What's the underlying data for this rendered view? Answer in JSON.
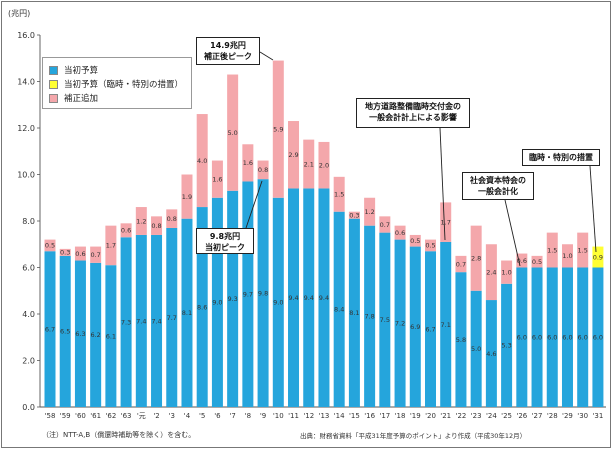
{
  "chart_data": {
    "type": "bar",
    "stacked": true,
    "unit": "(兆円)",
    "categories": [
      "'58",
      "'59",
      "'60",
      "'61",
      "'62",
      "'63",
      "'元",
      "'2",
      "'3",
      "'4",
      "'5",
      "'6",
      "'7",
      "'8",
      "'9",
      "'10",
      "'11",
      "'12",
      "'13",
      "'14",
      "'15",
      "'16",
      "'17",
      "'18",
      "'19",
      "'20",
      "'21",
      "'22",
      "'23",
      "'24",
      "'25",
      "'26",
      "'27",
      "'28",
      "'29",
      "'30",
      "'31"
    ],
    "series": [
      {
        "name": "当初予算",
        "color": "#25a5dc",
        "values": [
          6.7,
          6.5,
          6.3,
          6.2,
          6.1,
          7.3,
          7.4,
          7.4,
          7.7,
          8.1,
          8.6,
          9.0,
          9.3,
          9.7,
          9.8,
          9.0,
          9.4,
          9.4,
          9.4,
          8.4,
          8.1,
          7.8,
          7.5,
          7.2,
          6.9,
          6.7,
          7.1,
          5.8,
          5.0,
          4.6,
          5.3,
          6.0,
          6.0,
          6.0,
          6.0,
          6.0,
          6.0
        ]
      },
      {
        "name": "当初予算（臨時・特別の措置）",
        "color": "#ffff33",
        "values": [
          0,
          0,
          0,
          0,
          0,
          0,
          0,
          0,
          0,
          0,
          0,
          0,
          0,
          0,
          0,
          0,
          0,
          0,
          0,
          0,
          0,
          0,
          0,
          0,
          0,
          0,
          0,
          0,
          0,
          0,
          0,
          0,
          0,
          0,
          0,
          0,
          0.9
        ]
      },
      {
        "name": "補正追加",
        "color": "#f4a7ab",
        "values": [
          0.5,
          0.3,
          0.6,
          0.7,
          1.7,
          0.6,
          1.2,
          0.8,
          0.8,
          1.9,
          4.0,
          1.6,
          5.0,
          1.6,
          0.8,
          5.9,
          2.9,
          2.1,
          2.0,
          1.5,
          0.3,
          1.2,
          0.7,
          0.6,
          0.5,
          0.5,
          1.7,
          0.7,
          2.8,
          2.4,
          1.0,
          0.6,
          0.5,
          1.5,
          1.0,
          1.5,
          0
        ]
      }
    ],
    "ylim": [
      0,
      16
    ],
    "yticks": [
      "0.0",
      "2.0",
      "4.0",
      "6.0",
      "8.0",
      "10.0",
      "12.0",
      "14.0",
      "16.0"
    ],
    "grid": false,
    "legend": "top-left",
    "annotations": [
      {
        "lines": [
          "14.9兆円",
          "補正後ピーク"
        ]
      },
      {
        "lines": [
          "9.8兆円",
          "当初ピーク"
        ]
      },
      {
        "lines": [
          "地方道路整備臨時交付金の",
          "一般会計計上による影響"
        ]
      },
      {
        "lines": [
          "社会資本特会の",
          "一般会計化"
        ]
      },
      {
        "lines": [
          "臨時・特別の措置"
        ]
      }
    ]
  },
  "notes": {
    "left": "（注）NTT-A,B（償還時補助等を除く）を含む。",
    "right": "出典：財務省資料「平成31年度予算のポイント」より作成（平成30年12月）"
  }
}
